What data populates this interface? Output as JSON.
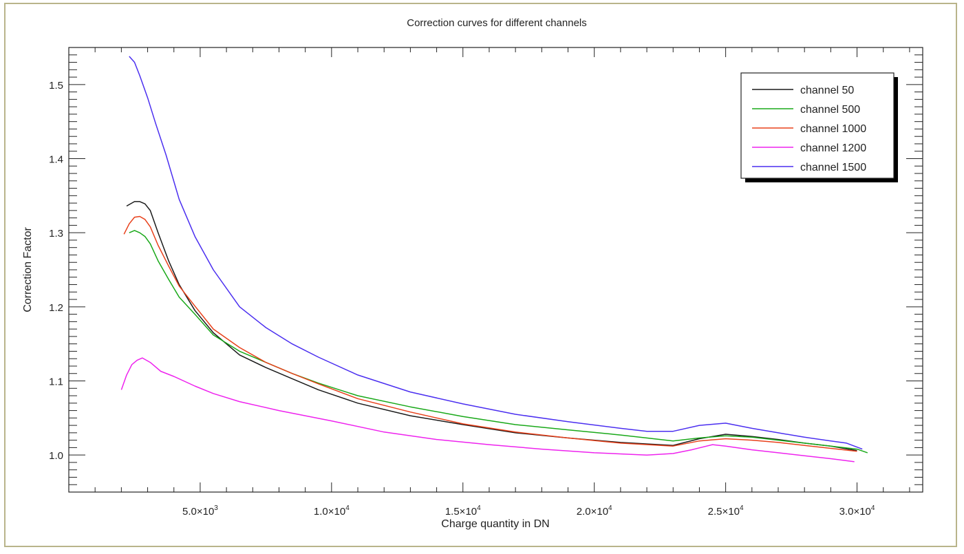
{
  "chart_data": {
    "type": "line",
    "title": "Correction curves for different channels",
    "xlabel": "Charge quantity in DN",
    "ylabel": "Correction Factor",
    "xlim": [
      0,
      32500
    ],
    "ylim": [
      0.95,
      1.55
    ],
    "x_ticks": [
      5000,
      10000,
      15000,
      20000,
      25000,
      30000
    ],
    "x_tick_labels": [
      {
        "mant": "5.0×10",
        "exp": "3"
      },
      {
        "mant": "1.0×10",
        "exp": "4"
      },
      {
        "mant": "1.5×10",
        "exp": "4"
      },
      {
        "mant": "2.0×10",
        "exp": "4"
      },
      {
        "mant": "2.5×10",
        "exp": "4"
      },
      {
        "mant": "3.0×10",
        "exp": "4"
      }
    ],
    "y_ticks": [
      1.0,
      1.1,
      1.2,
      1.3,
      1.4,
      1.5
    ],
    "y_tick_labels": [
      "1.0",
      "1.1",
      "1.2",
      "1.3",
      "1.4",
      "1.5"
    ],
    "legend_position": "top-right",
    "grid": false,
    "series": [
      {
        "name": "channel 50",
        "color": "#1a1a1a",
        "x": [
          2200,
          2500,
          2700,
          2900,
          3100,
          3400,
          3800,
          4200,
          4800,
          5500,
          6500,
          7500,
          8500,
          9500,
          11000,
          13000,
          15000,
          17000,
          19000,
          21000,
          23000,
          24000,
          25000,
          26000,
          27000,
          28000,
          29000,
          30000
        ],
        "y": [
          1.336,
          1.342,
          1.342,
          1.339,
          1.33,
          1.3,
          1.262,
          1.23,
          1.195,
          1.165,
          1.135,
          1.118,
          1.103,
          1.088,
          1.07,
          1.053,
          1.041,
          1.03,
          1.023,
          1.017,
          1.013,
          1.022,
          1.028,
          1.025,
          1.021,
          1.016,
          1.012,
          1.006
        ]
      },
      {
        "name": "channel 500",
        "color": "#18a818",
        "x": [
          2300,
          2500,
          2700,
          2900,
          3100,
          3400,
          3800,
          4200,
          4800,
          5500,
          6500,
          7500,
          8500,
          9500,
          11000,
          13000,
          15000,
          17000,
          19000,
          21000,
          23000,
          24000,
          25000,
          26000,
          27000,
          28000,
          29000,
          30000,
          30400
        ],
        "y": [
          1.3,
          1.303,
          1.3,
          1.295,
          1.285,
          1.262,
          1.237,
          1.213,
          1.19,
          1.162,
          1.14,
          1.125,
          1.11,
          1.097,
          1.08,
          1.065,
          1.052,
          1.041,
          1.034,
          1.027,
          1.019,
          1.023,
          1.026,
          1.024,
          1.02,
          1.016,
          1.012,
          1.008,
          1.003
        ]
      },
      {
        "name": "channel 1000",
        "color": "#e8401a",
        "x": [
          2100,
          2300,
          2500,
          2700,
          2900,
          3100,
          3400,
          3800,
          4200,
          4800,
          5500,
          6500,
          7500,
          8500,
          9500,
          11000,
          13000,
          15000,
          17000,
          19000,
          21000,
          23000,
          24000,
          25000,
          26000,
          27000,
          28000,
          29000,
          30000
        ],
        "y": [
          1.298,
          1.312,
          1.321,
          1.322,
          1.318,
          1.308,
          1.283,
          1.255,
          1.228,
          1.201,
          1.17,
          1.145,
          1.125,
          1.11,
          1.096,
          1.076,
          1.058,
          1.042,
          1.031,
          1.023,
          1.016,
          1.012,
          1.019,
          1.022,
          1.02,
          1.017,
          1.013,
          1.009,
          1.005
        ]
      },
      {
        "name": "channel 1200",
        "color": "#ee22ee",
        "x": [
          2000,
          2200,
          2400,
          2600,
          2800,
          3100,
          3500,
          4000,
          4800,
          5500,
          6500,
          8000,
          10000,
          12000,
          14000,
          16000,
          18000,
          20000,
          22000,
          23000,
          23700,
          24500,
          25000,
          26000,
          27000,
          28000,
          29000,
          29900
        ],
        "y": [
          1.088,
          1.108,
          1.122,
          1.128,
          1.131,
          1.125,
          1.113,
          1.106,
          1.093,
          1.083,
          1.072,
          1.06,
          1.046,
          1.031,
          1.021,
          1.014,
          1.008,
          1.003,
          1.0,
          1.002,
          1.007,
          1.014,
          1.012,
          1.007,
          1.003,
          0.999,
          0.995,
          0.991
        ]
      },
      {
        "name": "channel 1500",
        "color": "#4a2ef0",
        "x": [
          2300,
          2500,
          2700,
          3000,
          3300,
          3700,
          4200,
          4800,
          5500,
          6500,
          7500,
          8500,
          9500,
          11000,
          13000,
          15000,
          17000,
          19000,
          21000,
          22000,
          23000,
          24000,
          25000,
          26000,
          27000,
          28000,
          29000,
          29600,
          30200
        ],
        "y": [
          1.538,
          1.53,
          1.512,
          1.482,
          1.448,
          1.405,
          1.345,
          1.295,
          1.25,
          1.2,
          1.172,
          1.15,
          1.132,
          1.108,
          1.085,
          1.069,
          1.055,
          1.045,
          1.036,
          1.032,
          1.032,
          1.04,
          1.043,
          1.036,
          1.03,
          1.024,
          1.019,
          1.016,
          1.008
        ]
      }
    ]
  }
}
